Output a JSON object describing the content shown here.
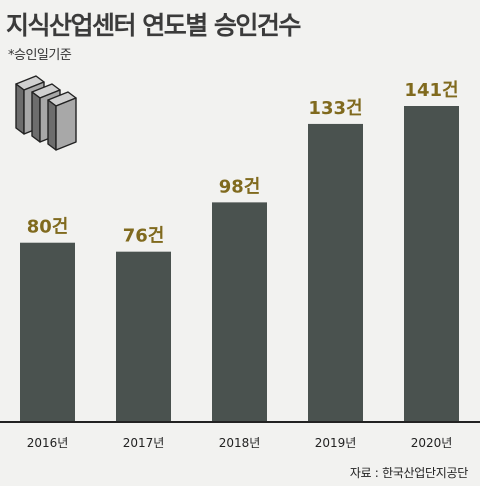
{
  "title": "지식산업센터 연도별  승인건수",
  "note": "*승인일기준",
  "source": "자료 :  한국산업단지공단",
  "colors": {
    "bar": "#4a524f",
    "value_label": "#806a1e",
    "axis": "#222222"
  },
  "icon": "stacked-buildings-icon",
  "chart_data": {
    "type": "bar",
    "title": "지식산업센터 연도별  승인건수",
    "categories": [
      "2016년",
      "2017년",
      "2018년",
      "2019년",
      "2020년"
    ],
    "values": [
      80,
      76,
      98,
      133,
      141
    ],
    "value_labels": [
      "80건",
      "76건",
      "98건",
      "133건",
      "141건"
    ],
    "ylim": [
      0,
      160
    ],
    "grid": false,
    "legend": "none"
  }
}
